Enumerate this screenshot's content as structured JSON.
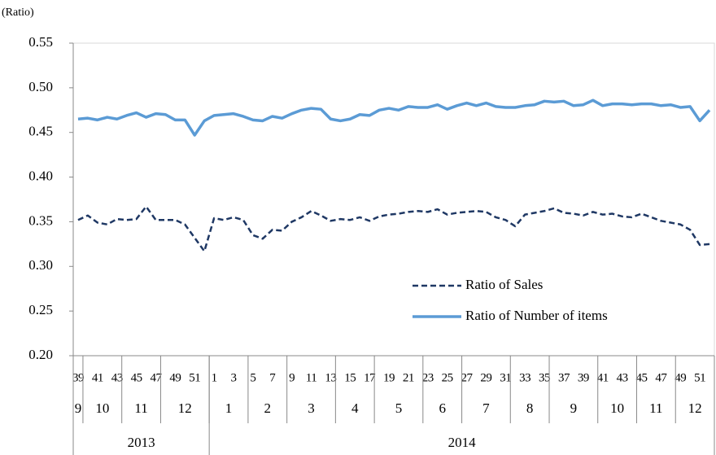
{
  "chart_data": {
    "type": "line",
    "y_label": "(Ratio)",
    "categories": [
      "39",
      null,
      "41",
      null,
      "43",
      null,
      "45",
      null,
      "47",
      null,
      "49",
      null,
      "51",
      null,
      "1",
      null,
      "3",
      null,
      "5",
      null,
      "7",
      null,
      "9",
      null,
      "11",
      null,
      "13",
      null,
      "15",
      null,
      "17",
      null,
      "19",
      null,
      "21",
      null,
      "23",
      null,
      "25",
      null,
      "27",
      null,
      "29",
      null,
      "31",
      null,
      "33",
      null,
      "35",
      null,
      "37",
      null,
      "39",
      null,
      "41",
      null,
      "43",
      null,
      "45",
      null,
      "47",
      null,
      "49",
      null,
      "51",
      null
    ],
    "month_groups": [
      {
        "label": "9",
        "weeks": 1
      },
      {
        "label": "10",
        "weeks": 4
      },
      {
        "label": "11",
        "weeks": 4
      },
      {
        "label": "12",
        "weeks": 5
      },
      {
        "label": "1",
        "weeks": 4
      },
      {
        "label": "2",
        "weeks": 4
      },
      {
        "label": "3",
        "weeks": 5
      },
      {
        "label": "4",
        "weeks": 4
      },
      {
        "label": "5",
        "weeks": 5
      },
      {
        "label": "6",
        "weeks": 4
      },
      {
        "label": "7",
        "weeks": 5
      },
      {
        "label": "8",
        "weeks": 4
      },
      {
        "label": "9",
        "weeks": 5
      },
      {
        "label": "10",
        "weeks": 4
      },
      {
        "label": "11",
        "weeks": 4
      },
      {
        "label": "12",
        "weeks": 4
      }
    ],
    "year_groups": [
      {
        "label": "2013",
        "weeks": 14
      },
      {
        "label": "2014",
        "weeks": 52
      }
    ],
    "series": [
      {
        "name": "Ratio of Sales",
        "color": "#1f3864",
        "dashed": true,
        "values": [
          0.352,
          0.357,
          0.349,
          0.347,
          0.353,
          0.352,
          0.353,
          0.367,
          0.352,
          0.352,
          0.352,
          0.347,
          0.332,
          0.317,
          0.354,
          0.352,
          0.355,
          0.352,
          0.335,
          0.331,
          0.341,
          0.34,
          0.35,
          0.355,
          0.362,
          0.357,
          0.351,
          0.353,
          0.352,
          0.355,
          0.351,
          0.356,
          0.358,
          0.359,
          0.361,
          0.362,
          0.361,
          0.364,
          0.358,
          0.36,
          0.361,
          0.362,
          0.361,
          0.355,
          0.352,
          0.345,
          0.358,
          0.36,
          0.362,
          0.365,
          0.36,
          0.359,
          0.357,
          0.361,
          0.358,
          0.359,
          0.356,
          0.355,
          0.359,
          0.355,
          0.351,
          0.349,
          0.347,
          0.341,
          0.324,
          0.325
        ]
      },
      {
        "name": "Ratio of Number of items",
        "color": "#5b9bd5",
        "dashed": false,
        "values": [
          0.465,
          0.466,
          0.464,
          0.467,
          0.465,
          0.469,
          0.472,
          0.467,
          0.471,
          0.47,
          0.464,
          0.464,
          0.447,
          0.463,
          0.469,
          0.47,
          0.471,
          0.468,
          0.464,
          0.463,
          0.468,
          0.466,
          0.471,
          0.475,
          0.477,
          0.476,
          0.465,
          0.463,
          0.465,
          0.47,
          0.469,
          0.475,
          0.477,
          0.475,
          0.479,
          0.478,
          0.478,
          0.481,
          0.476,
          0.48,
          0.483,
          0.48,
          0.483,
          0.479,
          0.478,
          0.478,
          0.48,
          0.481,
          0.485,
          0.484,
          0.485,
          0.48,
          0.481,
          0.486,
          0.48,
          0.482,
          0.482,
          0.481,
          0.482,
          0.482,
          0.48,
          0.481,
          0.478,
          0.479,
          0.463,
          0.475
        ]
      }
    ],
    "ylim": [
      0.2,
      0.55
    ],
    "yticks": [
      {
        "value": 0.2,
        "label": "0.20"
      },
      {
        "value": 0.25,
        "label": "0.25"
      },
      {
        "value": 0.3,
        "label": "0.30"
      },
      {
        "value": 0.35,
        "label": "0.35"
      },
      {
        "value": 0.4,
        "label": "0.40"
      },
      {
        "value": 0.45,
        "label": "0.45"
      },
      {
        "value": 0.5,
        "label": "0.50"
      },
      {
        "value": 0.55,
        "label": "0.55"
      }
    ],
    "grid": false
  }
}
